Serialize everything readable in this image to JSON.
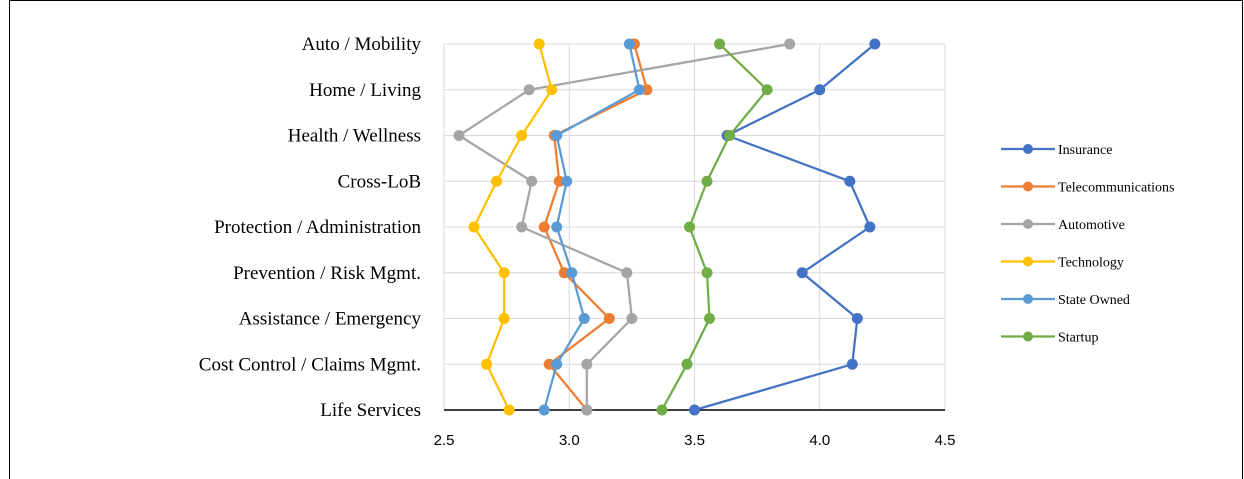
{
  "chart_data": {
    "type": "line",
    "orientation": "horizontal",
    "categories": [
      "Auto / Mobility",
      "Home / Living",
      "Health / Wellness",
      "Cross-LoB",
      "Protection / Administration",
      "Prevention / Risk Mgmt.",
      "Assistance / Emergency",
      "Cost Control / Claims Mgmt.",
      "Life Services"
    ],
    "xlim": [
      2.5,
      4.5
    ],
    "x_ticks": [
      "2.5",
      "3.0",
      "3.5",
      "4.0",
      "4.5"
    ],
    "grid": true,
    "legend_position": "right",
    "series": [
      {
        "name": "Insurance",
        "color": "#4472C4",
        "values": [
          4.22,
          4.0,
          3.63,
          4.12,
          4.2,
          3.93,
          4.15,
          4.13,
          3.5
        ]
      },
      {
        "name": "Telecommunications",
        "color": "#ED7D31",
        "values": [
          3.26,
          3.31,
          2.94,
          2.96,
          2.9,
          2.98,
          3.16,
          2.92,
          3.07
        ]
      },
      {
        "name": "Automotive",
        "color": "#A5A5A5",
        "values": [
          3.88,
          2.84,
          2.56,
          2.85,
          2.81,
          3.23,
          3.25,
          3.07,
          3.07
        ]
      },
      {
        "name": "Technology",
        "color": "#FFC000",
        "values": [
          2.88,
          2.93,
          2.81,
          2.71,
          2.62,
          2.74,
          2.74,
          2.67,
          2.76
        ]
      },
      {
        "name": "State Owned",
        "color": "#5B9BD5",
        "values": [
          3.24,
          3.28,
          2.95,
          2.99,
          2.95,
          3.01,
          3.06,
          2.95,
          2.9
        ]
      },
      {
        "name": "Startup",
        "color": "#70AD47",
        "values": [
          3.6,
          3.79,
          3.64,
          3.55,
          3.48,
          3.55,
          3.56,
          3.47,
          3.37
        ]
      }
    ]
  }
}
